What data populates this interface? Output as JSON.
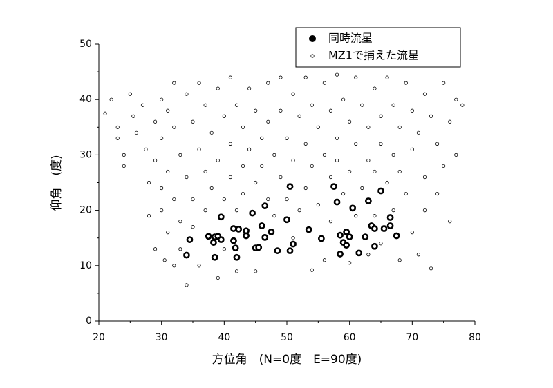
{
  "chart_data": {
    "type": "scatter",
    "x_label": "方位角　(N=0度　E=90度)",
    "y_label": "仰角　(度)",
    "xlim": [
      20,
      80
    ],
    "xticks": [
      20,
      30,
      40,
      50,
      60,
      70,
      80
    ],
    "ylim": [
      0,
      50
    ],
    "yticks": [
      0,
      10,
      20,
      30,
      40,
      50
    ],
    "series": [
      {
        "name": "同時流星",
        "color": "#000000",
        "x": [
          34.5,
          34,
          37.5,
          38.5,
          38.3,
          38.5,
          39,
          39.5,
          39.5,
          41.5,
          41.5,
          41.8,
          42,
          42.3,
          43.5,
          43.5,
          44.5,
          45,
          45.5,
          46,
          46.5,
          46.5,
          47.5,
          48.5,
          50,
          50.5,
          50.5,
          51,
          53.5,
          55.5,
          57.5,
          58,
          58.5,
          58.5,
          59,
          59.5,
          59.5,
          60,
          60.5,
          61.5,
          62.5,
          63,
          63.5,
          64,
          64,
          65,
          65.5,
          66.5,
          66.5,
          67.5
        ],
        "values": [
          14.7,
          11.9,
          15.3,
          15.2,
          14.2,
          11.5,
          15.3,
          14.7,
          18.8,
          16.7,
          14.5,
          13.2,
          11.5,
          16.6,
          16.3,
          15.4,
          19.5,
          13.2,
          13.3,
          17.2,
          15.1,
          20.8,
          16.1,
          12.7,
          18.3,
          24.3,
          12.7,
          13.9,
          16.5,
          14.9,
          24.3,
          21.5,
          15.5,
          12.1,
          14.2,
          13.7,
          16.1,
          15.2,
          20.4,
          12.3,
          15.2,
          21.7,
          17.2,
          16.7,
          13.5,
          23.5,
          16.7,
          17.2,
          18.7,
          15.4
        ]
      },
      {
        "name": "MZ1で捕えた流星",
        "color": "#000000",
        "x": [
          21,
          22,
          23,
          23,
          24,
          24,
          25,
          25.5,
          26,
          27,
          27.5,
          28,
          28,
          29,
          29,
          29,
          30,
          30,
          30,
          30,
          30.5,
          31,
          31,
          31,
          32,
          32,
          32,
          32,
          33,
          33,
          33,
          34,
          34,
          34,
          35,
          35,
          35,
          36,
          36,
          36,
          37,
          37,
          37,
          38,
          38,
          39,
          39,
          39,
          40,
          40,
          40,
          41,
          41,
          41,
          42,
          42,
          42,
          43,
          43,
          43,
          44,
          44,
          45,
          45,
          45,
          46,
          46,
          47,
          47,
          47,
          48,
          48,
          49,
          49,
          49,
          50,
          50,
          51,
          51,
          51,
          52,
          52,
          53,
          53,
          53,
          54,
          54,
          54,
          55,
          55,
          56,
          56,
          56,
          57,
          57,
          57,
          58,
          58,
          58,
          59,
          59,
          60,
          60,
          60,
          61,
          61,
          61,
          62,
          62,
          63,
          63,
          63,
          64,
          64,
          64,
          65,
          65,
          65,
          66,
          66,
          67,
          67,
          67,
          68,
          68,
          68,
          69,
          69,
          70,
          70,
          70,
          71,
          71,
          72,
          72,
          72,
          73,
          73,
          74,
          74,
          75,
          75,
          76,
          76,
          77,
          77,
          78
        ],
        "values": [
          37.5,
          40,
          35,
          33,
          30,
          28,
          41,
          37,
          34,
          39,
          31,
          25,
          19,
          36,
          29,
          13,
          40,
          33,
          24,
          20,
          11,
          38,
          27,
          16,
          43,
          35,
          22,
          10,
          30,
          18,
          13,
          41,
          26,
          6.5,
          36,
          22,
          17,
          43,
          31,
          10,
          39,
          27,
          20,
          34,
          24,
          42,
          29,
          7.8,
          37,
          22,
          13,
          44,
          32,
          26,
          39,
          20,
          9,
          35,
          28,
          23,
          42,
          31,
          38,
          25,
          9,
          33,
          28,
          43,
          36,
          22,
          30,
          19,
          44,
          38,
          26,
          33,
          22,
          41,
          29,
          15,
          37,
          20,
          44,
          32,
          24,
          39,
          28,
          9.2,
          35,
          21,
          43,
          30,
          11,
          38,
          26,
          18,
          44.5,
          33,
          29,
          40,
          23,
          36,
          27,
          10.5,
          44,
          32,
          19,
          39,
          24,
          35,
          29,
          12,
          42,
          27,
          19,
          37,
          32,
          14,
          44,
          25,
          39,
          30,
          20,
          35,
          27,
          11,
          43,
          23,
          38,
          31,
          16,
          34,
          12,
          41,
          26,
          20,
          37,
          9.5,
          32,
          23,
          43,
          28,
          36,
          18,
          40,
          30,
          39
        ]
      }
    ]
  }
}
